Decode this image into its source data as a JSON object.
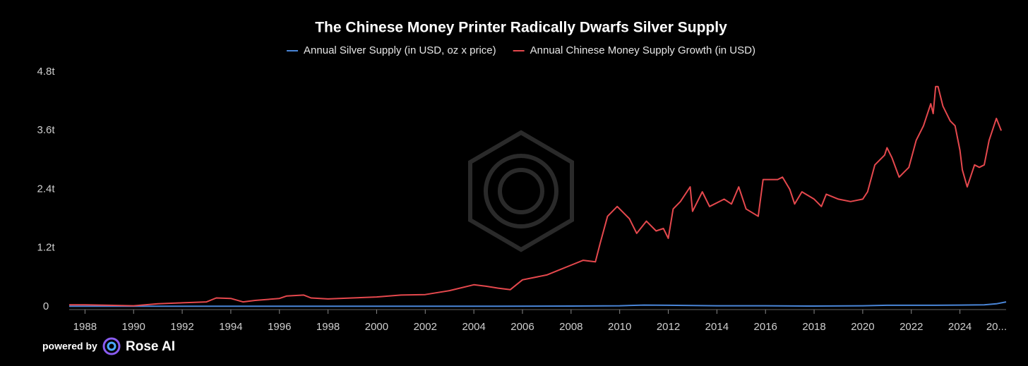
{
  "chart_data": {
    "type": "line",
    "title": "The Chinese Money Printer Radically Dwarfs Silver Supply",
    "legend": "top",
    "xlim": [
      1987.35,
      2025.9
    ],
    "xticks": [
      1988,
      1990,
      1992,
      1994,
      1996,
      1998,
      2000,
      2002,
      2004,
      2006,
      2008,
      2010,
      2012,
      2014,
      2016,
      2018,
      2020,
      2022,
      2024,
      {
        "value": 2026,
        "label": "20..."
      }
    ],
    "ylim": [
      0,
      4.8
    ],
    "yticks": [
      0,
      {
        "value": 1.2,
        "label": "1.2t"
      },
      {
        "value": 2.4,
        "label": "2.4t"
      },
      {
        "value": 3.6,
        "label": "3.6t"
      },
      {
        "value": 4.8,
        "label": "4.8t"
      }
    ],
    "series": [
      {
        "name": "Annual Silver Supply (in USD, oz x price)",
        "color": "#4a86d8",
        "x": [
          1987.35,
          1990,
          1995,
          2000,
          2005,
          2008,
          2010,
          2011,
          2012,
          2014,
          2016,
          2018,
          2020,
          2021,
          2023,
          2024,
          2025,
          2025.5,
          2025.9
        ],
        "values": [
          0.01,
          0.01,
          0.01,
          0.01,
          0.01,
          0.015,
          0.02,
          0.035,
          0.03,
          0.02,
          0.02,
          0.015,
          0.02,
          0.03,
          0.03,
          0.035,
          0.04,
          0.06,
          0.1
        ]
      },
      {
        "name": "Annual Chinese Money Supply Growth (in USD)",
        "color": "#e5484d",
        "x": [
          1987.35,
          1988,
          1989,
          1990,
          1991,
          1992,
          1993,
          1993.4,
          1994,
          1994.5,
          1995,
          1996,
          1996.3,
          1997,
          1997.3,
          1998,
          1999,
          2000,
          2001,
          2002,
          2003,
          2004,
          2004.5,
          2005,
          2005.5,
          2006,
          2007,
          2008,
          2008.5,
          2009,
          2009.2,
          2009.5,
          2009.9,
          2010.4,
          2010.7,
          2011.1,
          2011.5,
          2011.8,
          2012,
          2012.2,
          2012.5,
          2012.9,
          2013,
          2013.4,
          2013.7,
          2014.3,
          2014.6,
          2014.9,
          2015.2,
          2015.7,
          2015.9,
          2016.5,
          2016.7,
          2017,
          2017.2,
          2017.5,
          2018,
          2018.3,
          2018.5,
          2019,
          2019.5,
          2020,
          2020.2,
          2020.5,
          2020.9,
          2021,
          2021.2,
          2021.5,
          2021.7,
          2021.9,
          2022.2,
          2022.5,
          2022.8,
          2022.9,
          2023.0,
          2023.1,
          2023.3,
          2023.6,
          2023.8,
          2024.0,
          2024.1,
          2024.3,
          2024.6,
          2024.8,
          2025.0,
          2025.2,
          2025.5,
          2025.7
        ],
        "values": [
          0.04,
          0.04,
          0.03,
          0.02,
          0.06,
          0.08,
          0.1,
          0.18,
          0.17,
          0.1,
          0.13,
          0.17,
          0.22,
          0.24,
          0.18,
          0.16,
          0.18,
          0.2,
          0.24,
          0.25,
          0.33,
          0.45,
          0.42,
          0.38,
          0.35,
          0.55,
          0.65,
          0.85,
          0.95,
          0.92,
          1.3,
          1.85,
          2.05,
          1.8,
          1.5,
          1.75,
          1.55,
          1.6,
          1.4,
          2.0,
          2.15,
          2.45,
          1.95,
          2.35,
          2.05,
          2.2,
          2.1,
          2.45,
          2.0,
          1.85,
          2.6,
          2.6,
          2.65,
          2.4,
          2.1,
          2.35,
          2.2,
          2.05,
          2.3,
          2.2,
          2.15,
          2.2,
          2.35,
          2.9,
          3.1,
          3.25,
          3.05,
          2.65,
          2.75,
          2.85,
          3.4,
          3.7,
          4.15,
          3.95,
          4.5,
          4.5,
          4.1,
          3.8,
          3.7,
          3.2,
          2.8,
          2.45,
          2.9,
          2.85,
          2.9,
          3.4,
          3.85,
          3.6
        ]
      }
    ]
  },
  "branding": {
    "prefix": "powered by",
    "name": "Rose AI"
  }
}
